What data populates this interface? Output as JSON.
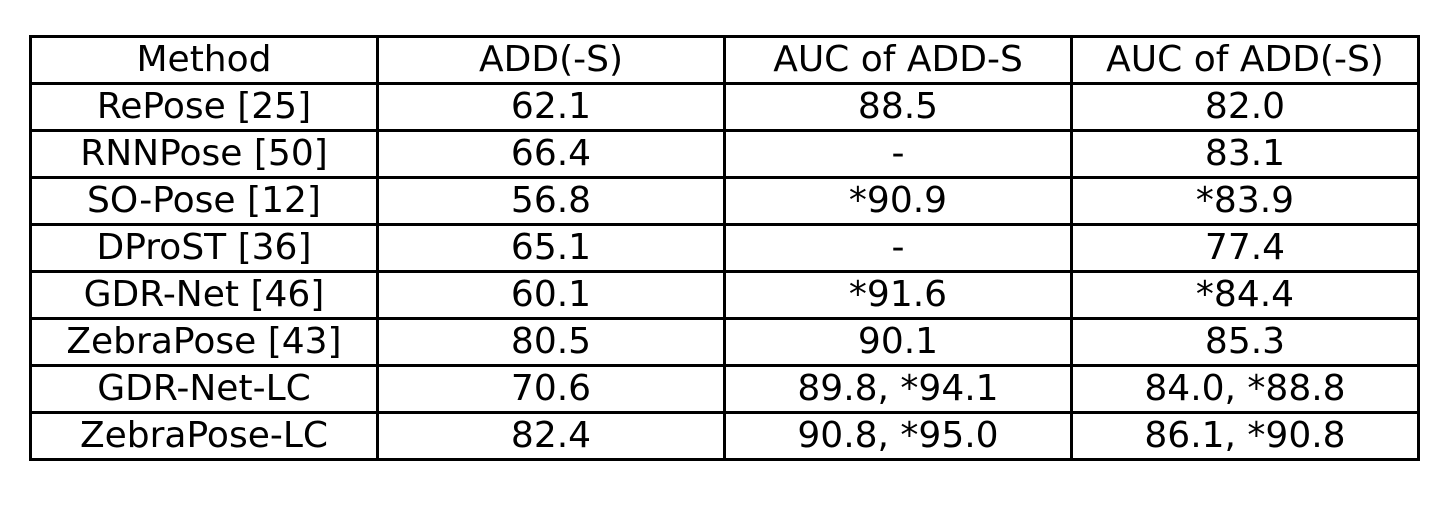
{
  "chart_data": {
    "type": "table",
    "columns": [
      "Method",
      "ADD(-S)",
      "AUC of ADD-S",
      "AUC of ADD(-S)"
    ],
    "rows": [
      [
        "RePose [25]",
        "62.1",
        "88.5",
        "82.0"
      ],
      [
        "RNNPose [50]",
        "66.4",
        "-",
        "83.1"
      ],
      [
        "SO-Pose [12]",
        "56.8",
        "*90.9",
        "*83.9"
      ],
      [
        "DProST [36]",
        "65.1",
        "-",
        "77.4"
      ],
      [
        "GDR-Net [46]",
        "60.1",
        "*91.6",
        "*84.4"
      ],
      [
        "ZebraPose [43]",
        "80.5",
        "90.1",
        "85.3"
      ],
      [
        "GDR-Net-LC",
        "70.6",
        "89.8, *94.1",
        "84.0, *88.8"
      ],
      [
        "ZebraPose-LC",
        "82.4",
        "90.8, *95.0",
        "86.1, *90.8"
      ]
    ]
  }
}
